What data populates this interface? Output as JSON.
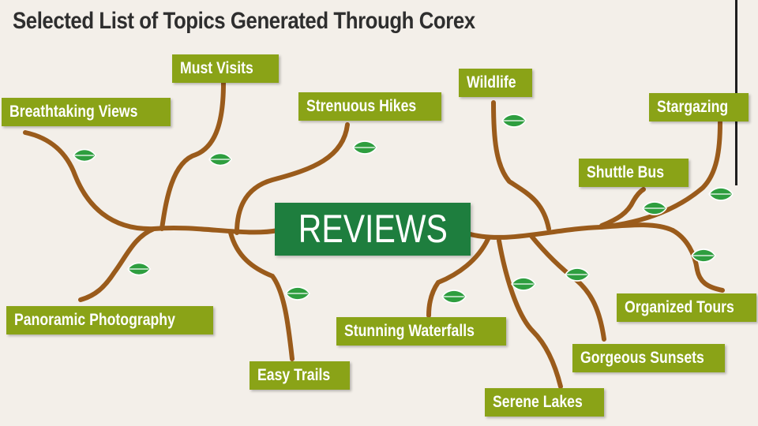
{
  "title": "Selected List of Topics Generated Through Corex",
  "center": {
    "label": "REVIEWS"
  },
  "topics": [
    {
      "label": "Breathtaking Views"
    },
    {
      "label": "Must Visits"
    },
    {
      "label": "Strenuous Hikes"
    },
    {
      "label": "Panoramic Photography"
    },
    {
      "label": "Easy Trails"
    },
    {
      "label": "Wildlife"
    },
    {
      "label": "Stargazing"
    },
    {
      "label": "Shuttle Bus"
    },
    {
      "label": "Organized Tours"
    },
    {
      "label": "Stunning Waterfalls"
    },
    {
      "label": "Gorgeous Sunsets"
    },
    {
      "label": "Serene Lakes"
    }
  ],
  "colors": {
    "background": "#f3efe9",
    "branch": "#9a5b1b",
    "leaf": "#2e9e3f",
    "topic_box": "#8aa317",
    "center_box": "#1e7e3e"
  },
  "icons": [
    "leaf-icon"
  ]
}
